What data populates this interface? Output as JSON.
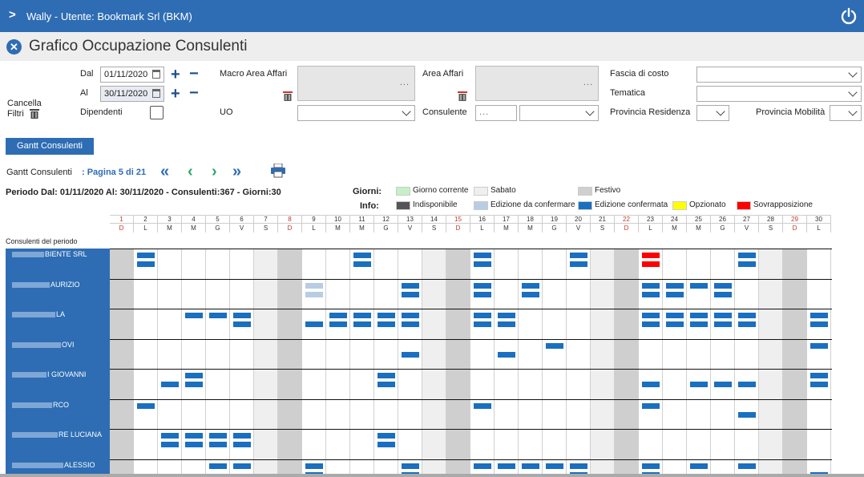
{
  "header": {
    "title": "Wally - Utente: Bookmark Srl (BKM)"
  },
  "page": {
    "title": "Grafico Occupazione Consulenti"
  },
  "filters": {
    "dal_label": "Dal",
    "dal_value": "01/11/2020",
    "al_label": "Al",
    "al_value": "30/11/2020",
    "dipendenti_label": "Dipendenti",
    "cancella_label": "Cancella",
    "filtri_label": "Filtri",
    "macro_area_label": "Macro Area Affari",
    "area_affari_label": "Area Affari",
    "uo_label": "UO",
    "consulente_label": "Consulente",
    "fascia_label": "Fascia di costo",
    "tematica_label": "Tematica",
    "prov_res_label": "Provincia Residenza",
    "prov_mob_label": "Provincia Mobilità",
    "dots": "...",
    "consulente_dots": "..."
  },
  "tab": {
    "label": "Gantt Consulenti"
  },
  "pager": {
    "label": "Gantt Consulenti",
    "link": ": Pagina 5 di 21"
  },
  "periodo": "Periodo Dal: 01/11/2020   Al: 30/11/2020 - Consulenti:367 - Giorni:30",
  "legend": {
    "giorni_label": "Giorni:",
    "info_label": "Info:",
    "items": [
      {
        "label": "Giorno corrente",
        "color": "#c6f0c6"
      },
      {
        "label": "Sabato",
        "color": "#efefef"
      },
      {
        "label": "Festivo",
        "color": "#cfcfcf"
      },
      {
        "label": "Indisponibile",
        "color": "#555555"
      },
      {
        "label": "Edizione da confermare",
        "color": "#b8cce4"
      },
      {
        "label": "Edizione confermata",
        "color": "#1a6fc0"
      },
      {
        "label": "Opzionato",
        "color": "#ffff00"
      },
      {
        "label": "Sovrapposizione",
        "color": "#ff0000"
      }
    ]
  },
  "days": [
    {
      "n": "1",
      "l": "D"
    },
    {
      "n": "2",
      "l": "L"
    },
    {
      "n": "3",
      "l": "M"
    },
    {
      "n": "4",
      "l": "M"
    },
    {
      "n": "5",
      "l": "G"
    },
    {
      "n": "6",
      "l": "V"
    },
    {
      "n": "7",
      "l": "S"
    },
    {
      "n": "8",
      "l": "D"
    },
    {
      "n": "9",
      "l": "L"
    },
    {
      "n": "10",
      "l": "M"
    },
    {
      "n": "11",
      "l": "M"
    },
    {
      "n": "12",
      "l": "G"
    },
    {
      "n": "13",
      "l": "V"
    },
    {
      "n": "14",
      "l": "S"
    },
    {
      "n": "15",
      "l": "D"
    },
    {
      "n": "16",
      "l": "L"
    },
    {
      "n": "17",
      "l": "M"
    },
    {
      "n": "18",
      "l": "M"
    },
    {
      "n": "19",
      "l": "G"
    },
    {
      "n": "20",
      "l": "V"
    },
    {
      "n": "21",
      "l": "S"
    },
    {
      "n": "22",
      "l": "D"
    },
    {
      "n": "23",
      "l": "L"
    },
    {
      "n": "24",
      "l": "M"
    },
    {
      "n": "25",
      "l": "M"
    },
    {
      "n": "26",
      "l": "G"
    },
    {
      "n": "27",
      "l": "V"
    },
    {
      "n": "28",
      "l": "S"
    },
    {
      "n": "29",
      "l": "D"
    },
    {
      "n": "30",
      "l": "L"
    }
  ],
  "consultants_label": "Consulenti del periodo",
  "consultants": [
    {
      "name": "BIENTE SRL",
      "bars": [
        [
          2,
          0
        ],
        [
          2,
          1
        ],
        [
          11,
          0
        ],
        [
          11,
          1
        ],
        [
          16,
          0
        ],
        [
          16,
          1
        ],
        [
          20,
          0
        ],
        [
          20,
          1
        ],
        [
          23,
          0,
          "r"
        ],
        [
          23,
          1,
          "r"
        ],
        [
          27,
          0
        ],
        [
          27,
          1
        ]
      ]
    },
    {
      "name": "AURIZIO",
      "bars": [
        [
          9,
          0,
          "l"
        ],
        [
          9,
          1,
          "l"
        ],
        [
          13,
          0
        ],
        [
          13,
          1
        ],
        [
          16,
          0
        ],
        [
          16,
          1
        ],
        [
          18,
          0
        ],
        [
          18,
          1
        ],
        [
          23,
          0
        ],
        [
          23,
          1
        ],
        [
          24,
          0
        ],
        [
          24,
          1
        ],
        [
          25,
          0
        ],
        [
          26,
          0
        ],
        [
          26,
          1
        ]
      ]
    },
    {
      "name": "LA",
      "bars": [
        [
          4,
          0
        ],
        [
          5,
          0
        ],
        [
          6,
          0
        ],
        [
          6,
          1
        ],
        [
          9,
          1
        ],
        [
          10,
          0
        ],
        [
          10,
          1
        ],
        [
          11,
          0
        ],
        [
          11,
          1
        ],
        [
          12,
          0
        ],
        [
          12,
          1
        ],
        [
          13,
          0
        ],
        [
          13,
          1
        ],
        [
          16,
          0
        ],
        [
          16,
          1
        ],
        [
          17,
          0
        ],
        [
          17,
          1
        ],
        [
          23,
          0
        ],
        [
          23,
          1
        ],
        [
          24,
          0
        ],
        [
          24,
          1
        ],
        [
          25,
          0
        ],
        [
          25,
          1
        ],
        [
          26,
          0
        ],
        [
          26,
          1
        ],
        [
          27,
          0
        ],
        [
          27,
          1
        ],
        [
          30,
          0
        ],
        [
          30,
          1
        ]
      ]
    },
    {
      "name": "OVI",
      "bars": [
        [
          13,
          1
        ],
        [
          17,
          1
        ],
        [
          19,
          0
        ],
        [
          30,
          0
        ]
      ]
    },
    {
      "name": "I GIOVANNI",
      "bars": [
        [
          3,
          1
        ],
        [
          4,
          0
        ],
        [
          4,
          1
        ],
        [
          12,
          0
        ],
        [
          12,
          1
        ],
        [
          23,
          1
        ],
        [
          25,
          1
        ],
        [
          26,
          1
        ],
        [
          27,
          1
        ],
        [
          30,
          0
        ],
        [
          30,
          1
        ]
      ]
    },
    {
      "name": "RCO",
      "bars": [
        [
          2,
          0
        ],
        [
          16,
          0
        ],
        [
          23,
          0
        ],
        [
          27,
          1
        ]
      ]
    },
    {
      "name": "RE LUCIANA",
      "bars": [
        [
          3,
          0
        ],
        [
          3,
          1
        ],
        [
          4,
          0
        ],
        [
          4,
          1
        ],
        [
          5,
          0
        ],
        [
          5,
          1
        ],
        [
          6,
          0
        ],
        [
          6,
          1
        ],
        [
          12,
          0
        ],
        [
          12,
          1
        ]
      ]
    },
    {
      "name": "ALESSIO",
      "bars": [
        [
          5,
          0
        ],
        [
          6,
          0
        ],
        [
          9,
          0
        ],
        [
          9,
          1
        ],
        [
          13,
          0
        ],
        [
          13,
          1
        ],
        [
          16,
          0
        ],
        [
          17,
          0
        ],
        [
          18,
          0
        ],
        [
          19,
          0
        ],
        [
          20,
          0
        ],
        [
          20,
          1
        ],
        [
          23,
          0
        ],
        [
          23,
          1
        ],
        [
          25,
          0
        ],
        [
          27,
          0
        ],
        [
          30,
          1
        ]
      ]
    }
  ]
}
